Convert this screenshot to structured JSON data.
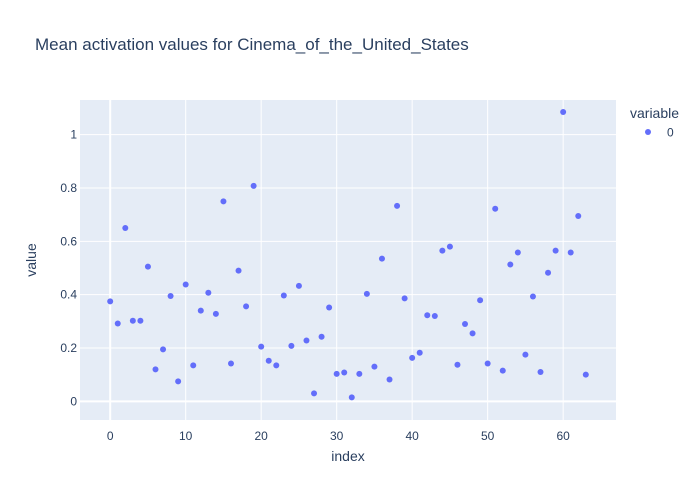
{
  "chart_data": {
    "type": "scatter",
    "title": "Mean activation values for Cinema_of_the_United_States",
    "xlabel": "index",
    "ylabel": "value",
    "xlim": [
      -4,
      67
    ],
    "ylim": [
      -0.07,
      1.13
    ],
    "xticks": [
      0,
      10,
      20,
      30,
      40,
      50,
      60
    ],
    "yticks": [
      0,
      0.2,
      0.4,
      0.6,
      0.8,
      1
    ],
    "ytick_labels": [
      "0",
      "0.2",
      "0.4",
      "0.6",
      "0.8",
      "1"
    ],
    "grid": true,
    "legend": {
      "title": "variable",
      "position": "top-right"
    },
    "series": [
      {
        "name": "0",
        "color": "#636efa",
        "x": [
          0,
          1,
          2,
          3,
          4,
          5,
          6,
          7,
          8,
          9,
          10,
          11,
          12,
          13,
          14,
          15,
          16,
          17,
          18,
          19,
          20,
          21,
          22,
          23,
          24,
          25,
          26,
          27,
          28,
          29,
          30,
          31,
          32,
          33,
          34,
          35,
          36,
          37,
          38,
          39,
          40,
          41,
          42,
          43,
          44,
          45,
          46,
          47,
          48,
          49,
          50,
          51,
          52,
          53,
          54,
          55,
          56,
          57,
          58,
          59,
          60,
          61,
          62,
          63
        ],
        "y": [
          0.375,
          0.292,
          0.65,
          0.302,
          0.302,
          0.505,
          0.12,
          0.195,
          0.395,
          0.075,
          0.438,
          0.135,
          0.34,
          0.407,
          0.328,
          0.75,
          0.142,
          0.49,
          0.356,
          0.808,
          0.205,
          0.152,
          0.135,
          0.397,
          0.208,
          0.433,
          0.228,
          0.03,
          0.242,
          0.352,
          0.103,
          0.108,
          0.015,
          0.103,
          0.403,
          0.13,
          0.535,
          0.082,
          0.733,
          0.386,
          0.163,
          0.182,
          0.323,
          0.32,
          0.565,
          0.58,
          0.137,
          0.29,
          0.255,
          0.379,
          0.142,
          0.722,
          0.115,
          0.513,
          0.558,
          0.175,
          0.393,
          0.11,
          0.482,
          0.565,
          1.085,
          0.558,
          0.695,
          0.1
        ]
      }
    ]
  }
}
